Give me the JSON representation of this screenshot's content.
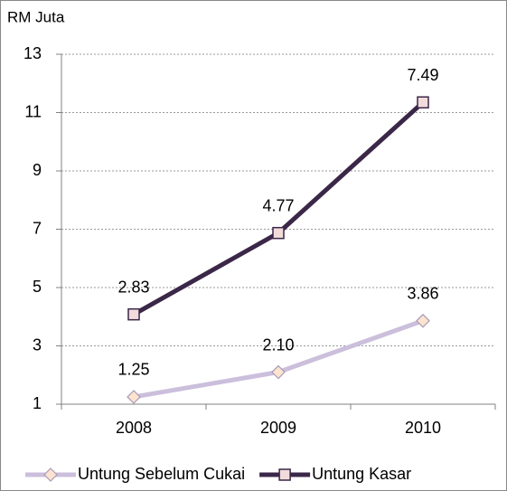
{
  "chart_data": {
    "type": "line",
    "stacked": true,
    "y_axis_label": "RM Juta",
    "categories": [
      "2008",
      "2009",
      "2010"
    ],
    "series": [
      {
        "name": "Untung Sebelum Cukai",
        "color": "#cbbfdc",
        "marker": "diamond",
        "marker_fill": "#fde4d0",
        "marker_edge": "#a89bb8",
        "values": [
          1.25,
          2.1,
          3.86
        ],
        "value_labels": [
          "1.25",
          "2.10",
          "3.86"
        ]
      },
      {
        "name": "Untung Kasar",
        "color": "#3b2748",
        "marker": "square",
        "marker_fill": "#f2dcdb",
        "marker_edge": "#3b2748",
        "values": [
          2.83,
          4.77,
          7.49
        ]
      }
    ],
    "ylim": [
      1,
      13
    ],
    "yticks": [
      1,
      3,
      5,
      7,
      9,
      11,
      13
    ],
    "grid": true
  }
}
